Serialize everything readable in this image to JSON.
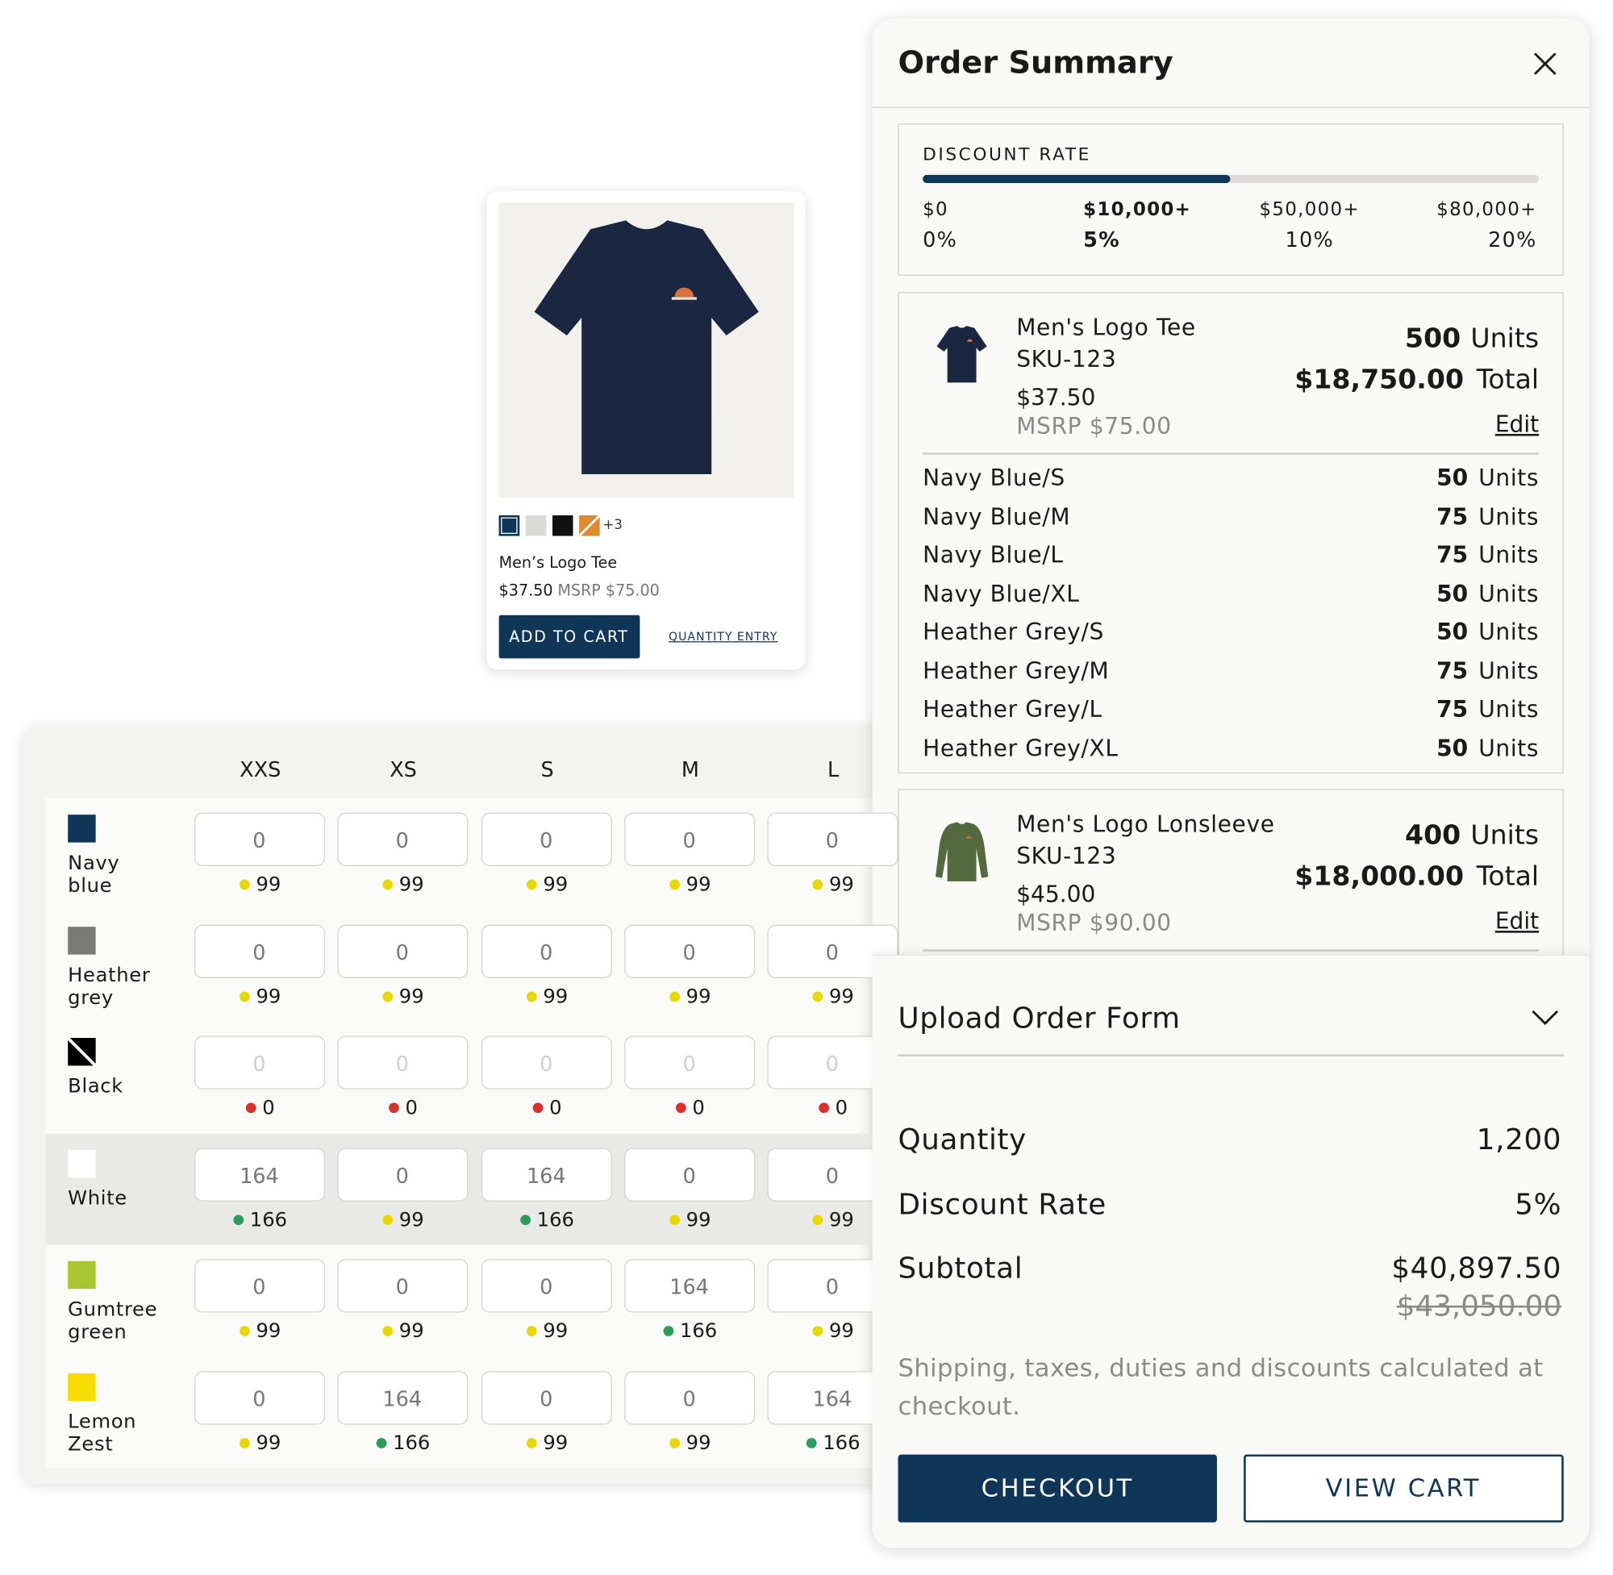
{
  "product_card": {
    "swatch_colors": [
      "#0f3557",
      "#d9d9d6",
      "#111111",
      "#e08a2e"
    ],
    "more_colors": "+3",
    "name": "Men’s Logo Tee",
    "price": "$37.50",
    "msrp": "MSRP $75.00",
    "add_to_cart": "ADD TO CART",
    "quantity_entry": "QUANTITY ENTRY"
  },
  "grid": {
    "sizes": [
      "XXS",
      "XS",
      "S",
      "M",
      "L"
    ],
    "status_colors": {
      "low": "#e6d800",
      "high": "#2a9d5c",
      "out": "#d9302c"
    },
    "rows": [
      {
        "color": "Navy blue",
        "swatch": "#0f3557",
        "quantities": [
          0,
          0,
          0,
          0,
          0
        ],
        "stock": [
          99,
          99,
          99,
          99,
          99
        ],
        "status": [
          "low",
          "low",
          "low",
          "low",
          "low"
        ]
      },
      {
        "color": "Heather grey",
        "swatch": "#7a7a76",
        "quantities": [
          0,
          0,
          0,
          0,
          0
        ],
        "stock": [
          99,
          99,
          99,
          99,
          99
        ],
        "status": [
          "low",
          "low",
          "low",
          "low",
          "low"
        ]
      },
      {
        "color": "Black",
        "swatch": "#000000",
        "disabled": true,
        "quantities": [
          0,
          0,
          0,
          0,
          0
        ],
        "stock": [
          0,
          0,
          0,
          0,
          0
        ],
        "status": [
          "out",
          "out",
          "out",
          "out",
          "out"
        ]
      },
      {
        "color": "White",
        "swatch": "#ffffff",
        "selected": true,
        "quantities": [
          164,
          0,
          164,
          0,
          0
        ],
        "stock": [
          166,
          99,
          166,
          99,
          99
        ],
        "status": [
          "high",
          "low",
          "high",
          "low",
          "low"
        ]
      },
      {
        "color": "Gumtree green",
        "swatch": "#a9c530",
        "quantities": [
          0,
          0,
          0,
          164,
          0
        ],
        "stock": [
          99,
          99,
          99,
          166,
          99
        ],
        "status": [
          "low",
          "low",
          "low",
          "high",
          "low"
        ]
      },
      {
        "color": "Lemon Zest",
        "swatch": "#f6dc00",
        "quantities": [
          0,
          164,
          0,
          0,
          164
        ],
        "stock": [
          99,
          166,
          99,
          99,
          166
        ],
        "status": [
          "low",
          "high",
          "low",
          "low",
          "high"
        ]
      }
    ]
  },
  "order_summary": {
    "title": "Order Summary",
    "discount": {
      "label": "DISCOUNT RATE",
      "current_tier": 1,
      "tiers": [
        {
          "threshold": "$0",
          "rate": "0%"
        },
        {
          "threshold": "$10,000+",
          "rate": "5%"
        },
        {
          "threshold": "$50,000+",
          "rate": "10%"
        },
        {
          "threshold": "$80,000+",
          "rate": "20%"
        }
      ]
    },
    "items": [
      {
        "name": "Men's Logo Tee",
        "sku": "SKU-123",
        "price": "$37.50",
        "msrp": "MSRP $75.00",
        "color": "#1b2640",
        "units": 500,
        "units_label": "Units",
        "total": "$18,750.00",
        "total_label": "Total",
        "edit": "Edit",
        "variants": [
          {
            "name": "Navy Blue/S",
            "units": 50,
            "units_label": "Units"
          },
          {
            "name": "Navy Blue/M",
            "units": 75,
            "units_label": "Units"
          },
          {
            "name": "Navy Blue/L",
            "units": 75,
            "units_label": "Units"
          },
          {
            "name": "Navy Blue/XL",
            "units": 50,
            "units_label": "Units"
          },
          {
            "name": "Heather Grey/S",
            "units": 50,
            "units_label": "Units"
          },
          {
            "name": "Heather Grey/M",
            "units": 75,
            "units_label": "Units"
          },
          {
            "name": "Heather Grey/L",
            "units": 75,
            "units_label": "Units"
          },
          {
            "name": "Heather Grey/XL",
            "units": 50,
            "units_label": "Units"
          }
        ]
      },
      {
        "name": "Men's Logo Lonsleeve",
        "sku": "SKU-123",
        "price": "$45.00",
        "msrp": "MSRP $90.00",
        "color": "#55693f",
        "units": 400,
        "units_label": "Units",
        "total": "$18,000.00",
        "total_label": "Total",
        "edit": "Edit",
        "variants": []
      }
    ],
    "upload": "Upload Order Form",
    "totals": [
      {
        "label": "Quantity",
        "value": "1,200"
      },
      {
        "label": "Discount Rate",
        "value": "5%"
      },
      {
        "label": "Subtotal",
        "value": "$40,897.50"
      }
    ],
    "original_subtotal": "$43,050.00",
    "note": "Shipping, taxes, duties and discounts calculated at checkout.",
    "checkout": "CHECKOUT",
    "view_cart": "VIEW CART"
  }
}
